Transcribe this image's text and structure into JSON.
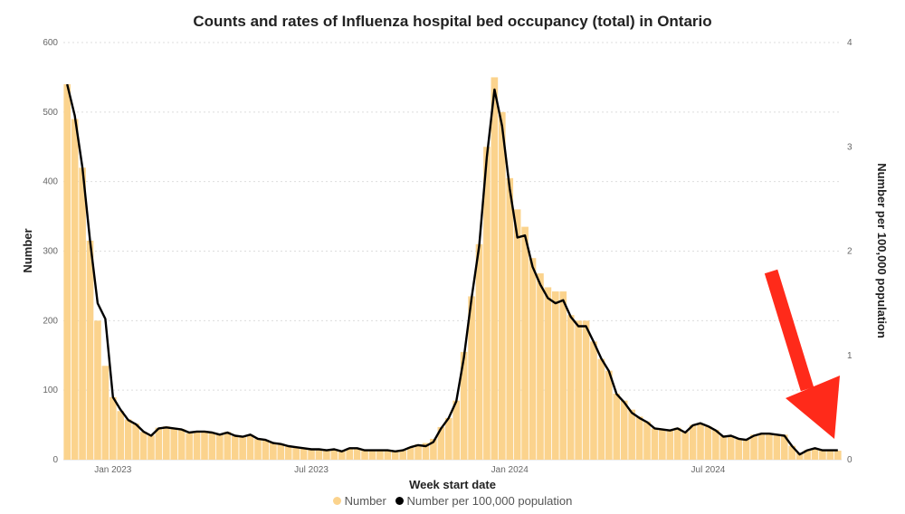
{
  "chart_data": {
    "type": "bar+line",
    "title": "Counts and rates of Influenza hospital bed occupancy (total) in Ontario",
    "xlabel": "Week start date",
    "ylabel": "Number",
    "y2label": "Number per 100,000 population",
    "ylim": [
      0,
      600
    ],
    "y2lim": [
      0,
      4
    ],
    "yticks": [
      0,
      100,
      200,
      300,
      400,
      500,
      600
    ],
    "y2ticks": [
      0,
      1,
      2,
      3,
      4
    ],
    "xticks": [
      {
        "label": "Jan 2023",
        "week": 6
      },
      {
        "label": "Jul 2023",
        "week": 32
      },
      {
        "label": "Jan 2024",
        "week": 58
      },
      {
        "label": "Jul 2024",
        "week": 84
      }
    ],
    "grid": true,
    "legend_position": "bottom",
    "colors": {
      "bars": "#fbd38d",
      "line": "#000000",
      "grid": "#dddddd",
      "arrow": "#ff2a1a"
    },
    "series": [
      {
        "name": "Number",
        "type": "bar",
        "values": [
          540,
          490,
          420,
          315,
          200,
          135,
          90,
          70,
          58,
          52,
          40,
          35,
          46,
          48,
          46,
          44,
          38,
          41,
          40,
          39,
          37,
          40,
          34,
          33,
          36,
          30,
          28,
          24,
          22,
          19,
          17,
          16,
          14,
          15,
          13,
          14,
          12,
          16,
          17,
          14,
          13,
          14,
          13,
          12,
          13,
          18,
          22,
          24,
          30,
          47,
          60,
          85,
          155,
          235,
          310,
          450,
          550,
          500,
          405,
          360,
          335,
          290,
          268,
          248,
          242,
          242,
          208,
          200,
          200,
          170,
          145,
          128,
          95,
          85,
          72,
          62,
          55,
          45,
          44,
          43,
          46,
          40,
          50,
          52,
          48,
          43,
          35,
          34,
          30,
          29,
          36,
          38,
          38,
          36,
          36,
          20,
          10,
          14,
          16,
          14,
          14,
          13
        ]
      },
      {
        "name": "Number per 100,000 population",
        "type": "line",
        "values": [
          3.6,
          3.3,
          2.8,
          2.1,
          1.5,
          1.35,
          0.6,
          0.48,
          0.38,
          0.34,
          0.27,
          0.23,
          0.3,
          0.31,
          0.3,
          0.29,
          0.26,
          0.27,
          0.27,
          0.26,
          0.24,
          0.26,
          0.23,
          0.22,
          0.24,
          0.2,
          0.19,
          0.16,
          0.15,
          0.13,
          0.12,
          0.11,
          0.1,
          0.1,
          0.09,
          0.1,
          0.08,
          0.11,
          0.11,
          0.09,
          0.09,
          0.09,
          0.09,
          0.08,
          0.09,
          0.12,
          0.14,
          0.13,
          0.17,
          0.3,
          0.4,
          0.56,
          0.98,
          1.55,
          2.05,
          2.9,
          3.55,
          3.2,
          2.6,
          2.13,
          2.15,
          1.85,
          1.68,
          1.55,
          1.5,
          1.53,
          1.37,
          1.28,
          1.28,
          1.13,
          0.97,
          0.85,
          0.63,
          0.55,
          0.45,
          0.4,
          0.36,
          0.3,
          0.29,
          0.28,
          0.3,
          0.26,
          0.33,
          0.35,
          0.32,
          0.28,
          0.22,
          0.23,
          0.2,
          0.19,
          0.23,
          0.25,
          0.25,
          0.24,
          0.23,
          0.13,
          0.05,
          0.09,
          0.11,
          0.09,
          0.09,
          0.09
        ]
      }
    ]
  }
}
